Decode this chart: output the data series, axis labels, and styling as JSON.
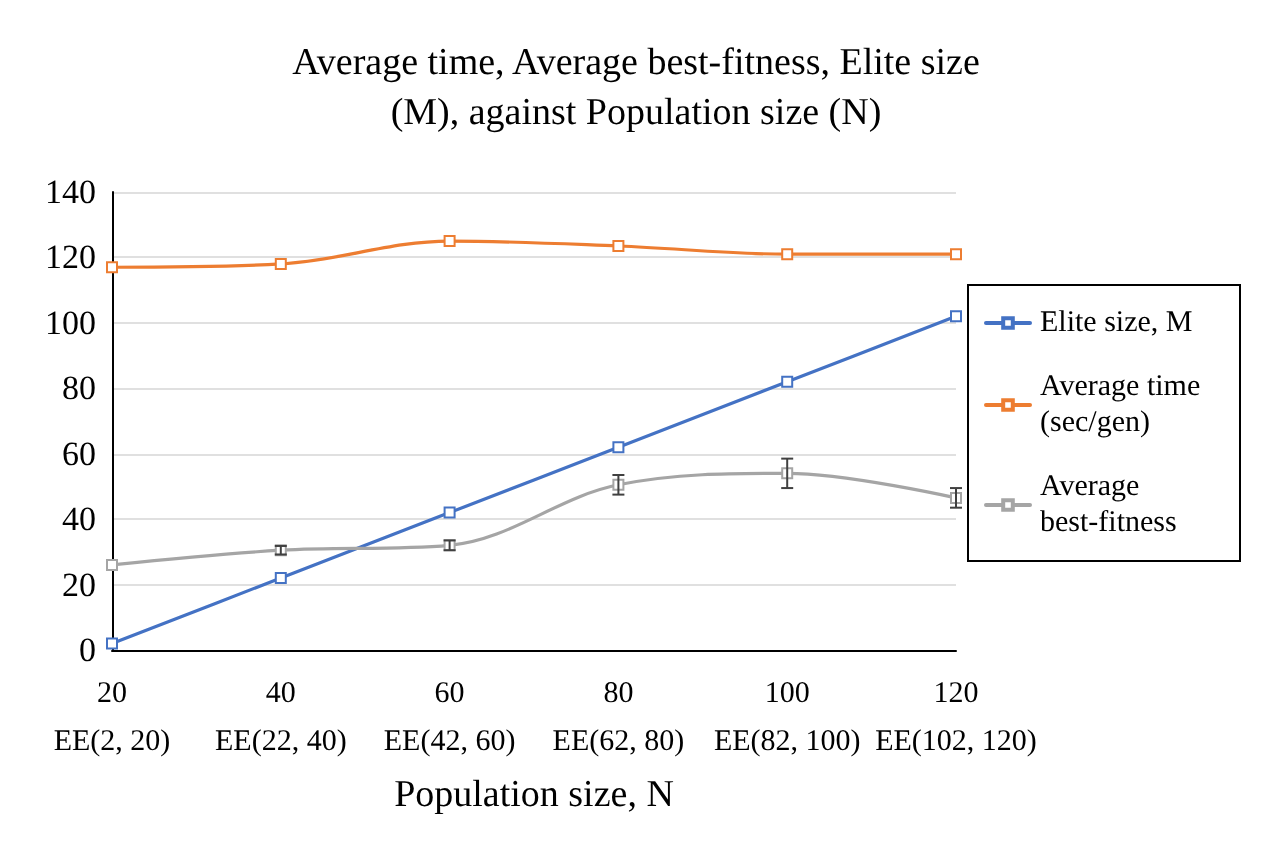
{
  "chart_data": {
    "type": "line",
    "title": "Average time, Average best-fitness, Elite size\n(M), against Population size (N)",
    "xlabel": "Population size, N",
    "categories": [
      "20\nEE(2, 20)",
      "40\nEE(22, 40)",
      "60\nEE(42, 60)",
      "80\nEE(62, 80)",
      "100\nEE(82, 100)",
      "120\nEE(102, 120)"
    ],
    "ylim": [
      0,
      140
    ],
    "yticks": [
      0,
      20,
      40,
      60,
      80,
      100,
      120,
      140
    ],
    "grid": "y",
    "legend": "right",
    "marker": "square",
    "line_style": "solid",
    "series": [
      {
        "name": "Elite size, M",
        "color": "#4472c4",
        "values": [
          2,
          22,
          42,
          62,
          82,
          102
        ]
      },
      {
        "name": "Average time (sec/gen)",
        "color": "#ed7d31",
        "values": [
          117,
          118,
          125,
          123.5,
          121,
          121
        ]
      },
      {
        "name": "Average best-fitness",
        "color": "#a5a5a5",
        "values": [
          26,
          30.5,
          32,
          50.5,
          54,
          46.5
        ],
        "errors": [
          null,
          1.3,
          1.5,
          3,
          4.5,
          3
        ]
      }
    ]
  }
}
